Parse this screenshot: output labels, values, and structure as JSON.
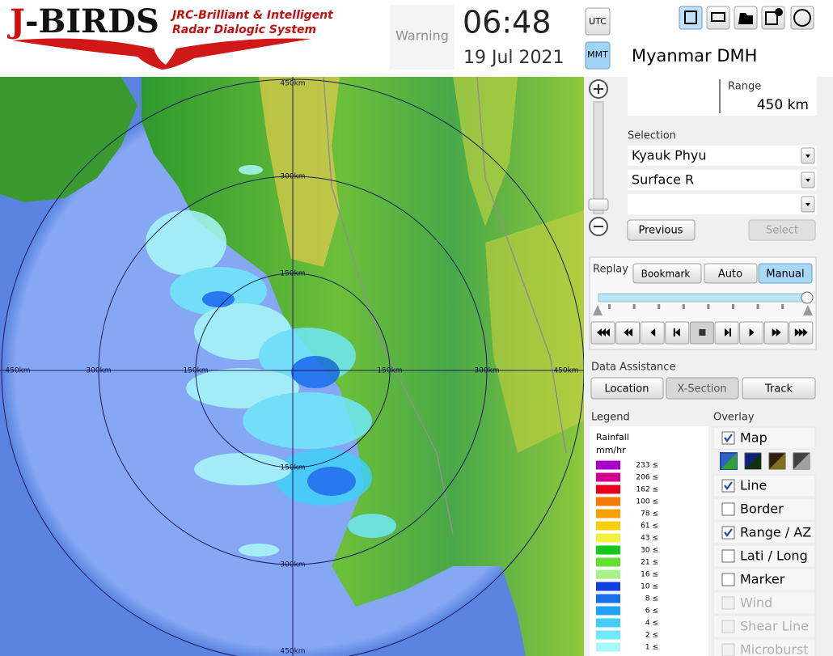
{
  "header": {
    "logo_initial": "J",
    "logo_rest": "-BIRDS",
    "tagline_1": "JRC-Brilliant & Intelligent",
    "tagline_2": "Radar Dialogic System",
    "warning": "Warning",
    "time": "06:48",
    "date": "19 Jul 2021",
    "utc": "UTC",
    "mmt": "MMT"
  },
  "map": {
    "range_labels": [
      "150km",
      "300km",
      "450km"
    ]
  },
  "panel": {
    "site": "Myanmar DMH",
    "range_label": "Range",
    "range_value": "450 km",
    "selection_label": "Selection",
    "selections": [
      "Kyauk Phyu",
      "Surface R"
    ],
    "previous": "Previous",
    "select": "Select",
    "replay": "Replay",
    "bookmark": "Bookmark",
    "auto": "Auto",
    "manual": "Manual",
    "data_assistance": "Data Assistance",
    "location": "Location",
    "x_section": "X-Section",
    "track": "Track"
  },
  "legend": {
    "title": "Legend",
    "quantity": "Rainfall",
    "unit": "mm/hr",
    "levels": [
      {
        "label": "233 ≤",
        "color": "#a800c8"
      },
      {
        "label": "206 ≤",
        "color": "#d0008c"
      },
      {
        "label": "162 ≤",
        "color": "#e8001c"
      },
      {
        "label": "100 ≤",
        "color": "#f57c00"
      },
      {
        "label": "78 ≤",
        "color": "#f8a000"
      },
      {
        "label": "61 ≤",
        "color": "#f8d000"
      },
      {
        "label": "43 ≤",
        "color": "#f4f040"
      },
      {
        "label": "30 ≤",
        "color": "#18c818"
      },
      {
        "label": "21 ≤",
        "color": "#60e030"
      },
      {
        "label": "16 ≤",
        "color": "#a8f088"
      },
      {
        "label": "10 ≤",
        "color": "#1040e0"
      },
      {
        "label": "8 ≤",
        "color": "#1870f0"
      },
      {
        "label": "6 ≤",
        "color": "#20a0f8"
      },
      {
        "label": "4 ≤",
        "color": "#40d0f8"
      },
      {
        "label": "2 ≤",
        "color": "#70e8f8"
      },
      {
        "label": "1 ≤",
        "color": "#a8f8f8"
      }
    ]
  },
  "overlay": {
    "title": "Overlay",
    "items": [
      {
        "label": "Map",
        "checked": true,
        "enabled": true
      },
      {
        "label": "Line",
        "checked": true,
        "enabled": true
      },
      {
        "label": "Border",
        "checked": false,
        "enabled": true
      },
      {
        "label": "Range / AZ",
        "checked": true,
        "enabled": true
      },
      {
        "label": "Lati / Long",
        "checked": false,
        "enabled": true
      },
      {
        "label": "Marker",
        "checked": false,
        "enabled": true
      },
      {
        "label": "Wind",
        "checked": false,
        "enabled": false
      },
      {
        "label": "Shear Line",
        "checked": false,
        "enabled": false
      },
      {
        "label": "Microburst",
        "checked": false,
        "enabled": false
      }
    ]
  }
}
